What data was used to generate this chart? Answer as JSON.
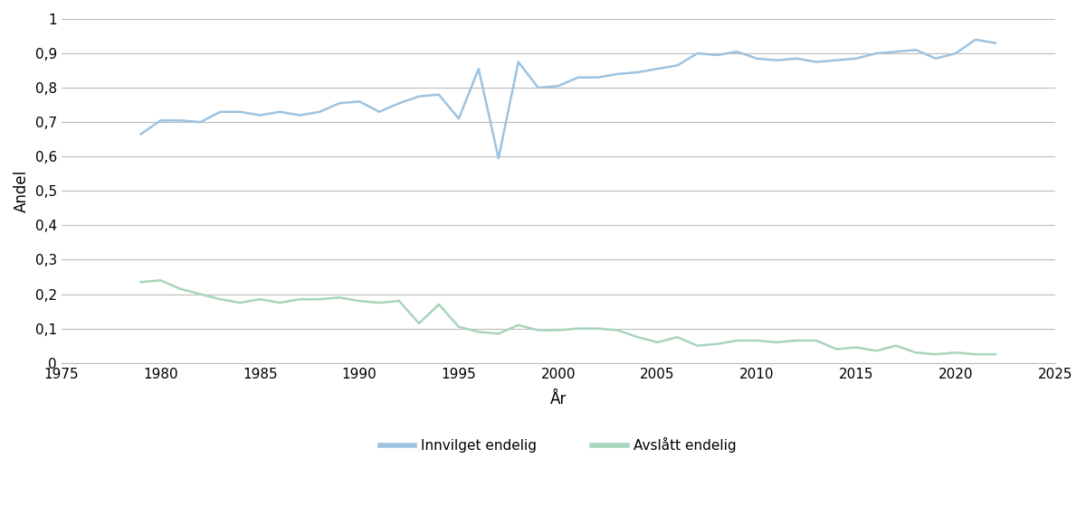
{
  "years_blue": [
    1979,
    1980,
    1981,
    1982,
    1983,
    1984,
    1985,
    1986,
    1987,
    1988,
    1989,
    1990,
    1991,
    1992,
    1993,
    1994,
    1995,
    1996,
    1997,
    1998,
    1999,
    2000,
    2001,
    2002,
    2003,
    2004,
    2005,
    2006,
    2007,
    2008,
    2009,
    2010,
    2011,
    2012,
    2013,
    2014,
    2015,
    2016,
    2017,
    2018,
    2019,
    2020,
    2021,
    2022
  ],
  "values_blue": [
    0.665,
    0.705,
    0.705,
    0.7,
    0.73,
    0.73,
    0.72,
    0.73,
    0.72,
    0.73,
    0.755,
    0.76,
    0.73,
    0.755,
    0.775,
    0.78,
    0.71,
    0.855,
    0.595,
    0.875,
    0.8,
    0.805,
    0.83,
    0.83,
    0.84,
    0.845,
    0.855,
    0.865,
    0.9,
    0.895,
    0.905,
    0.885,
    0.88,
    0.885,
    0.875,
    0.88,
    0.885,
    0.9,
    0.905,
    0.91,
    0.885,
    0.9,
    0.94,
    0.93
  ],
  "years_green": [
    1979,
    1980,
    1981,
    1982,
    1983,
    1984,
    1985,
    1986,
    1987,
    1988,
    1989,
    1990,
    1991,
    1992,
    1993,
    1994,
    1995,
    1996,
    1997,
    1998,
    1999,
    2000,
    2001,
    2002,
    2003,
    2004,
    2005,
    2006,
    2007,
    2008,
    2009,
    2010,
    2011,
    2012,
    2013,
    2014,
    2015,
    2016,
    2017,
    2018,
    2019,
    2020,
    2021,
    2022
  ],
  "values_green": [
    0.235,
    0.24,
    0.215,
    0.2,
    0.185,
    0.175,
    0.185,
    0.175,
    0.185,
    0.185,
    0.19,
    0.18,
    0.175,
    0.18,
    0.115,
    0.17,
    0.105,
    0.09,
    0.085,
    0.11,
    0.095,
    0.095,
    0.1,
    0.1,
    0.095,
    0.075,
    0.06,
    0.075,
    0.05,
    0.055,
    0.065,
    0.065,
    0.06,
    0.065,
    0.065,
    0.04,
    0.045,
    0.035,
    0.05,
    0.03,
    0.025,
    0.03,
    0.025,
    0.025
  ],
  "blue_color": "#9dc3e0",
  "green_color": "#a8d5bb",
  "ylabel": "Andel",
  "xlabel": "År",
  "xlim": [
    1975,
    2025
  ],
  "ylim": [
    0,
    1.0
  ],
  "yticks": [
    0,
    0.1,
    0.2,
    0.3,
    0.4,
    0.5,
    0.6,
    0.7,
    0.8,
    0.9,
    1
  ],
  "xticks": [
    1975,
    1980,
    1985,
    1990,
    1995,
    2000,
    2005,
    2010,
    2015,
    2020,
    2025
  ],
  "legend_blue": "Innvilget endelig",
  "legend_green": "Avslått endelig",
  "background_color": "#ffffff",
  "grid_color": "#bbbbbb"
}
